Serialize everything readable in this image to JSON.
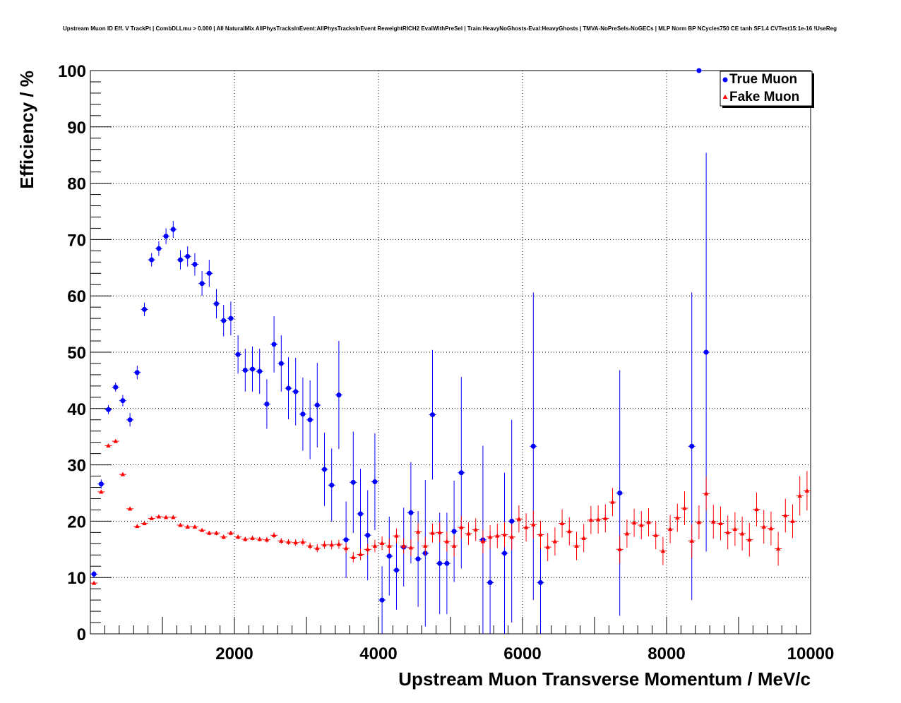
{
  "chart_data": {
    "type": "scatter",
    "title": "Upstream Muon ID Eff. V TrackPt | CombDLLmu > 0.000 | All NaturalMix AllPhysTracksInEvent:AllPhysTracksInEvent ReweightRICH2 EvalWithPreSel | Train:HeavyNoGhosts-Eval:HeavyGhosts | TMVA-NoPreSels-NoGECs | MLP Norm BP NCycles750 CE tanh SF1.4 CVTest15:1e-16 !UseReg",
    "xlabel": "Upstream Muon Transverse Momentum / MeV/c",
    "ylabel": "Efficiency / %",
    "xlim": [
      0,
      10000
    ],
    "ylim": [
      0,
      100
    ],
    "x_ticks": [
      2000,
      4000,
      6000,
      8000,
      10000
    ],
    "y_ticks": [
      0,
      10,
      20,
      30,
      40,
      50,
      60,
      70,
      80,
      90,
      100
    ],
    "grid": true,
    "legend_position": "top-right",
    "series": [
      {
        "name": "True Muon",
        "marker": "circle",
        "color": "#0000ff",
        "points": [
          {
            "x": 50,
            "y": 10.6,
            "err": 0.6
          },
          {
            "x": 150,
            "y": 26.6,
            "err": 0.8
          },
          {
            "x": 250,
            "y": 39.8,
            "err": 0.8
          },
          {
            "x": 350,
            "y": 43.8,
            "err": 0.8
          },
          {
            "x": 450,
            "y": 41.4,
            "err": 1.0
          },
          {
            "x": 550,
            "y": 38.0,
            "err": 1.2
          },
          {
            "x": 650,
            "y": 46.4,
            "err": 1.2
          },
          {
            "x": 750,
            "y": 57.6,
            "err": 1.2
          },
          {
            "x": 850,
            "y": 66.4,
            "err": 1.2
          },
          {
            "x": 950,
            "y": 68.4,
            "err": 1.3
          },
          {
            "x": 1050,
            "y": 70.6,
            "err": 1.4
          },
          {
            "x": 1150,
            "y": 71.8,
            "err": 1.5
          },
          {
            "x": 1250,
            "y": 66.4,
            "err": 1.7
          },
          {
            "x": 1350,
            "y": 67.0,
            "err": 1.8
          },
          {
            "x": 1450,
            "y": 65.6,
            "err": 2.0
          },
          {
            "x": 1550,
            "y": 62.2,
            "err": 2.2
          },
          {
            "x": 1650,
            "y": 64.0,
            "err": 2.4
          },
          {
            "x": 1750,
            "y": 58.6,
            "err": 2.6
          },
          {
            "x": 1850,
            "y": 55.6,
            "err": 2.8
          },
          {
            "x": 1950,
            "y": 56.0,
            "err": 3.0
          },
          {
            "x": 2050,
            "y": 49.6,
            "err": 3.4
          },
          {
            "x": 2150,
            "y": 46.8,
            "err": 3.8
          },
          {
            "x": 2250,
            "y": 47.0,
            "err": 4.0
          },
          {
            "x": 2350,
            "y": 46.6,
            "err": 4.0
          },
          {
            "x": 2450,
            "y": 40.8,
            "err": 4.4
          },
          {
            "x": 2550,
            "y": 51.4,
            "err": 5.0
          },
          {
            "x": 2650,
            "y": 48.0,
            "err": 5.0
          },
          {
            "x": 2750,
            "y": 43.6,
            "err": 5.5
          },
          {
            "x": 2850,
            "y": 43.0,
            "err": 6.0
          },
          {
            "x": 2950,
            "y": 39.0,
            "err": 6.5
          },
          {
            "x": 3050,
            "y": 38.0,
            "err": 7.0
          },
          {
            "x": 3150,
            "y": 40.6,
            "err": 7.5
          },
          {
            "x": 3250,
            "y": 29.2,
            "err": 6.5
          },
          {
            "x": 3350,
            "y": 26.4,
            "err": 6.5
          },
          {
            "x": 3450,
            "y": 42.4,
            "err": 9.6
          },
          {
            "x": 3550,
            "y": 16.7,
            "err": 6.8
          },
          {
            "x": 3650,
            "y": 26.9,
            "err": 9.0
          },
          {
            "x": 3750,
            "y": 21.3,
            "err": 8.0
          },
          {
            "x": 3850,
            "y": 17.5,
            "err": 8.0
          },
          {
            "x": 3950,
            "y": 27.0,
            "err": 8.6
          },
          {
            "x": 4050,
            "y": 6.0,
            "err": 6.0
          },
          {
            "x": 4150,
            "y": 13.8,
            "err": 7.0
          },
          {
            "x": 4250,
            "y": 11.3,
            "err": 7.0
          },
          {
            "x": 4350,
            "y": 15.4,
            "err": 7.0
          },
          {
            "x": 4450,
            "y": 21.5,
            "err": 9.0
          },
          {
            "x": 4550,
            "y": 13.3,
            "err": 8.5
          },
          {
            "x": 4650,
            "y": 14.3,
            "err": 13.0
          },
          {
            "x": 4750,
            "y": 38.9,
            "err": 11.5
          },
          {
            "x": 4850,
            "y": 12.5,
            "err": 9.0
          },
          {
            "x": 4950,
            "y": 12.5,
            "err": 9.0
          },
          {
            "x": 5050,
            "y": 18.2,
            "err": 9.0
          },
          {
            "x": 5150,
            "y": 28.6,
            "err": 17.0
          },
          {
            "x": 5450,
            "y": 16.7,
            "err": 16.7
          },
          {
            "x": 5550,
            "y": 9.1,
            "err": 9.1
          },
          {
            "x": 5750,
            "y": 14.3,
            "err": 14.3
          },
          {
            "x": 5850,
            "y": 20.0,
            "err": 18.0
          },
          {
            "x": 6150,
            "y": 33.3,
            "err": 27.3
          },
          {
            "x": 6250,
            "y": 9.1,
            "err": 9.1
          },
          {
            "x": 7350,
            "y": 25.0,
            "err": 21.8
          },
          {
            "x": 8350,
            "y": 33.3,
            "err": 27.3
          },
          {
            "x": 8450,
            "y": 100.0,
            "err": 0.0
          },
          {
            "x": 8550,
            "y": 50.0,
            "err": 35.4
          }
        ]
      },
      {
        "name": "Fake Muon",
        "marker": "triangle",
        "color": "#ff0000",
        "points": [
          {
            "x": 50,
            "y": 9.0,
            "err": 0.2
          },
          {
            "x": 150,
            "y": 25.2,
            "err": 0.3
          },
          {
            "x": 250,
            "y": 33.4,
            "err": 0.3
          },
          {
            "x": 350,
            "y": 34.2,
            "err": 0.3
          },
          {
            "x": 450,
            "y": 28.3,
            "err": 0.3
          },
          {
            "x": 550,
            "y": 22.2,
            "err": 0.3
          },
          {
            "x": 650,
            "y": 19.1,
            "err": 0.3
          },
          {
            "x": 750,
            "y": 19.6,
            "err": 0.3
          },
          {
            "x": 850,
            "y": 20.5,
            "err": 0.3
          },
          {
            "x": 950,
            "y": 20.8,
            "err": 0.3
          },
          {
            "x": 1050,
            "y": 20.7,
            "err": 0.3
          },
          {
            "x": 1150,
            "y": 20.7,
            "err": 0.3
          },
          {
            "x": 1250,
            "y": 19.3,
            "err": 0.3
          },
          {
            "x": 1350,
            "y": 19.0,
            "err": 0.3
          },
          {
            "x": 1450,
            "y": 19.0,
            "err": 0.3
          },
          {
            "x": 1550,
            "y": 18.4,
            "err": 0.3
          },
          {
            "x": 1650,
            "y": 17.9,
            "err": 0.4
          },
          {
            "x": 1750,
            "y": 17.9,
            "err": 0.4
          },
          {
            "x": 1850,
            "y": 17.2,
            "err": 0.4
          },
          {
            "x": 1950,
            "y": 17.9,
            "err": 0.4
          },
          {
            "x": 2050,
            "y": 17.2,
            "err": 0.4
          },
          {
            "x": 2150,
            "y": 16.8,
            "err": 0.4
          },
          {
            "x": 2250,
            "y": 17.0,
            "err": 0.4
          },
          {
            "x": 2350,
            "y": 16.8,
            "err": 0.4
          },
          {
            "x": 2450,
            "y": 16.7,
            "err": 0.5
          },
          {
            "x": 2550,
            "y": 17.5,
            "err": 0.5
          },
          {
            "x": 2650,
            "y": 16.5,
            "err": 0.5
          },
          {
            "x": 2750,
            "y": 16.3,
            "err": 0.5
          },
          {
            "x": 2850,
            "y": 16.2,
            "err": 0.6
          },
          {
            "x": 2950,
            "y": 16.3,
            "err": 0.6
          },
          {
            "x": 3050,
            "y": 15.6,
            "err": 0.6
          },
          {
            "x": 3150,
            "y": 15.2,
            "err": 0.7
          },
          {
            "x": 3250,
            "y": 15.8,
            "err": 0.7
          },
          {
            "x": 3350,
            "y": 15.8,
            "err": 0.8
          },
          {
            "x": 3450,
            "y": 15.9,
            "err": 0.8
          },
          {
            "x": 3550,
            "y": 15.2,
            "err": 0.9
          },
          {
            "x": 3650,
            "y": 13.6,
            "err": 0.9
          },
          {
            "x": 3750,
            "y": 14.1,
            "err": 1.0
          },
          {
            "x": 3850,
            "y": 15.0,
            "err": 1.0
          },
          {
            "x": 3950,
            "y": 15.6,
            "err": 1.1
          },
          {
            "x": 4050,
            "y": 16.1,
            "err": 1.2
          },
          {
            "x": 4150,
            "y": 15.6,
            "err": 1.3
          },
          {
            "x": 4250,
            "y": 17.4,
            "err": 1.3
          },
          {
            "x": 4350,
            "y": 15.6,
            "err": 1.4
          },
          {
            "x": 4450,
            "y": 15.3,
            "err": 1.5
          },
          {
            "x": 4550,
            "y": 18.1,
            "err": 1.6
          },
          {
            "x": 4650,
            "y": 15.6,
            "err": 1.6
          },
          {
            "x": 4750,
            "y": 17.9,
            "err": 1.7
          },
          {
            "x": 4850,
            "y": 18.0,
            "err": 1.8
          },
          {
            "x": 4950,
            "y": 16.4,
            "err": 1.8
          },
          {
            "x": 5050,
            "y": 15.6,
            "err": 1.9
          },
          {
            "x": 5150,
            "y": 18.9,
            "err": 2.0
          },
          {
            "x": 5250,
            "y": 17.8,
            "err": 2.0
          },
          {
            "x": 5350,
            "y": 18.5,
            "err": 2.0
          },
          {
            "x": 5450,
            "y": 16.4,
            "err": 2.1
          },
          {
            "x": 5550,
            "y": 17.2,
            "err": 2.1
          },
          {
            "x": 5650,
            "y": 17.4,
            "err": 2.2
          },
          {
            "x": 5750,
            "y": 17.6,
            "err": 2.2
          },
          {
            "x": 5850,
            "y": 17.2,
            "err": 2.3
          },
          {
            "x": 5950,
            "y": 20.4,
            "err": 2.4
          },
          {
            "x": 6050,
            "y": 18.9,
            "err": 2.5
          },
          {
            "x": 6150,
            "y": 19.4,
            "err": 2.5
          },
          {
            "x": 6250,
            "y": 17.6,
            "err": 2.5
          },
          {
            "x": 6350,
            "y": 15.4,
            "err": 2.5
          },
          {
            "x": 6450,
            "y": 16.4,
            "err": 2.5
          },
          {
            "x": 6550,
            "y": 19.6,
            "err": 2.5
          },
          {
            "x": 6650,
            "y": 18.2,
            "err": 2.5
          },
          {
            "x": 6750,
            "y": 15.6,
            "err": 2.5
          },
          {
            "x": 6850,
            "y": 17.0,
            "err": 2.5
          },
          {
            "x": 6950,
            "y": 20.2,
            "err": 2.5
          },
          {
            "x": 7050,
            "y": 20.3,
            "err": 2.5
          },
          {
            "x": 7150,
            "y": 20.5,
            "err": 2.5
          },
          {
            "x": 7250,
            "y": 23.4,
            "err": 2.5
          },
          {
            "x": 7350,
            "y": 15.0,
            "err": 2.5
          },
          {
            "x": 7450,
            "y": 17.8,
            "err": 2.5
          },
          {
            "x": 7550,
            "y": 19.7,
            "err": 2.5
          },
          {
            "x": 7650,
            "y": 19.3,
            "err": 2.5
          },
          {
            "x": 7750,
            "y": 19.8,
            "err": 2.5
          },
          {
            "x": 7850,
            "y": 17.5,
            "err": 2.5
          },
          {
            "x": 7950,
            "y": 14.7,
            "err": 2.5
          },
          {
            "x": 8050,
            "y": 18.6,
            "err": 2.5
          },
          {
            "x": 8150,
            "y": 20.6,
            "err": 2.5
          },
          {
            "x": 8250,
            "y": 22.3,
            "err": 3.0
          },
          {
            "x": 8350,
            "y": 16.5,
            "err": 3.0
          },
          {
            "x": 8450,
            "y": 19.8,
            "err": 3.0
          },
          {
            "x": 8550,
            "y": 24.9,
            "err": 3.0
          },
          {
            "x": 8650,
            "y": 19.9,
            "err": 3.0
          },
          {
            "x": 8750,
            "y": 19.6,
            "err": 3.0
          },
          {
            "x": 8850,
            "y": 18.0,
            "err": 3.0
          },
          {
            "x": 8950,
            "y": 18.6,
            "err": 3.0
          },
          {
            "x": 9050,
            "y": 17.8,
            "err": 3.0
          },
          {
            "x": 9150,
            "y": 16.7,
            "err": 3.0
          },
          {
            "x": 9250,
            "y": 22.1,
            "err": 3.0
          },
          {
            "x": 9350,
            "y": 19.0,
            "err": 3.0
          },
          {
            "x": 9450,
            "y": 18.7,
            "err": 3.0
          },
          {
            "x": 9550,
            "y": 15.1,
            "err": 3.0
          },
          {
            "x": 9650,
            "y": 21.0,
            "err": 3.0
          },
          {
            "x": 9750,
            "y": 20.0,
            "err": 3.0
          },
          {
            "x": 9850,
            "y": 24.5,
            "err": 3.5
          },
          {
            "x": 9950,
            "y": 25.4,
            "err": 3.5
          }
        ]
      }
    ]
  }
}
